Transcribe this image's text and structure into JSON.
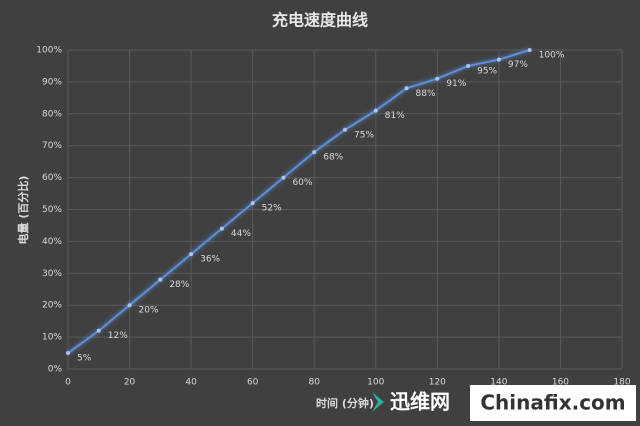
{
  "chart_data": {
    "type": "line",
    "title": "充电速度曲线",
    "x_label": "时间 (分钟)",
    "y_label": "电量 (百分比)",
    "x": [
      0,
      10,
      20,
      30,
      40,
      50,
      60,
      70,
      80,
      90,
      100,
      110,
      120,
      130,
      140,
      150
    ],
    "series": [
      {
        "color": "#5b8fd6",
        "values": [
          5,
          12,
          20,
          28,
          36,
          44,
          52,
          60,
          68,
          75,
          81,
          88,
          91,
          95,
          97,
          100
        ],
        "value_labels": [
          "5%",
          "12%",
          "20%",
          "28%",
          "36%",
          "44%",
          "52%",
          "60%",
          "68%",
          "75%",
          "81%",
          "88%",
          "91%",
          "95%",
          "97%",
          "100%"
        ]
      }
    ],
    "xlim": [
      0,
      180
    ],
    "xticks": [
      0,
      20,
      40,
      60,
      80,
      100,
      120,
      140,
      160,
      180
    ],
    "ylim": [
      0,
      100
    ],
    "yticks": [
      {
        "value": 0,
        "label": "0%"
      },
      {
        "value": 10,
        "label": "10%"
      },
      {
        "value": 20,
        "label": "20%"
      },
      {
        "value": 30,
        "label": "30%"
      },
      {
        "value": 40,
        "label": "40%"
      },
      {
        "value": 50,
        "label": "50%"
      },
      {
        "value": 60,
        "label": "60%"
      },
      {
        "value": 70,
        "label": "70%"
      },
      {
        "value": 80,
        "label": "80%"
      },
      {
        "value": 90,
        "label": "90%"
      },
      {
        "value": 100,
        "label": "100%"
      }
    ],
    "grid": true
  },
  "watermark": {
    "site": "迅维网",
    "domain": "Chinafix.com"
  }
}
